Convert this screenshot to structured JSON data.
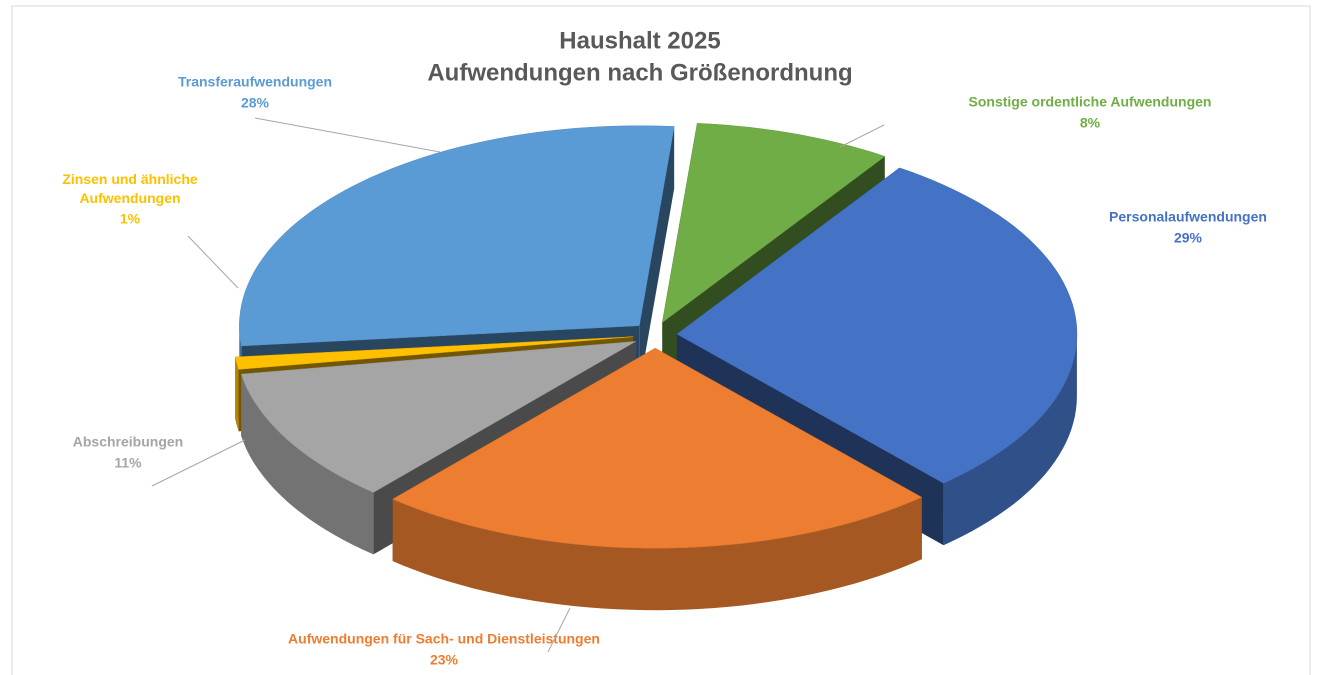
{
  "chart_data": {
    "type": "pie3d",
    "title": "Haushalt 2025",
    "subtitle": "Aufwendungen nach Größenordnung",
    "categories": [
      "Sonstige ordentliche Aufwendungen",
      "Personalaufwendungen",
      "Aufwendungen für Sach- und Dienstleistungen",
      "Abschreibungen",
      "Zinsen und ähnliche Aufwendungen",
      "Transferaufwendungen"
    ],
    "values": [
      8,
      29,
      23,
      11,
      1,
      28
    ],
    "value_labels": [
      "8%",
      "29%",
      "23%",
      "11%",
      "1%",
      "28%"
    ],
    "colors": [
      "#70ad47",
      "#4472c4",
      "#ed7d31",
      "#a5a5a5",
      "#ffc000",
      "#5b9bd5"
    ]
  }
}
